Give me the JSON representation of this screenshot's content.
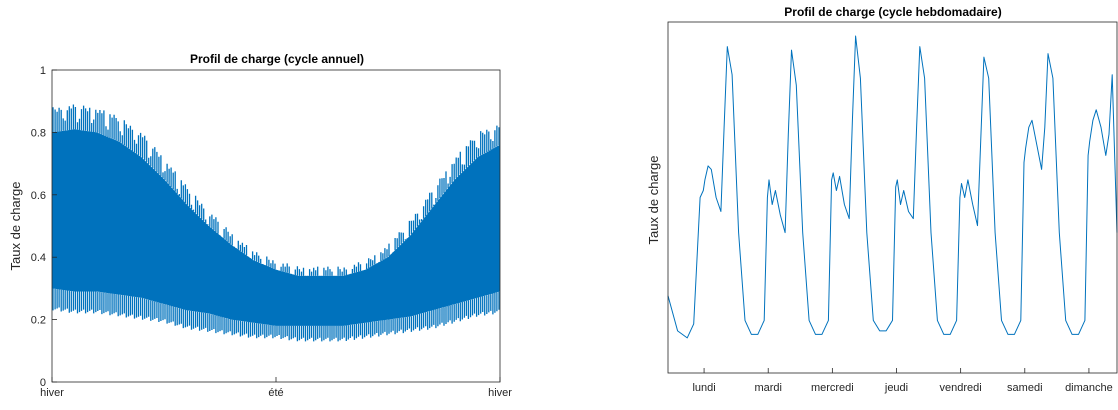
{
  "chart_data": [
    {
      "type": "area",
      "title": "Profil de charge (cycle annuel)",
      "xlabel": "",
      "ylabel": "Taux de charge",
      "x_categories": [
        "hiver",
        "été",
        "hiver"
      ],
      "yticks": [
        "0",
        "0.2",
        "0.4",
        "0.6",
        "0.8",
        "1"
      ],
      "ylim": [
        0,
        1
      ],
      "color": "#0072BD",
      "envelope": {
        "x": [
          0,
          0.05,
          0.1,
          0.15,
          0.2,
          0.25,
          0.3,
          0.35,
          0.4,
          0.45,
          0.5,
          0.55,
          0.6,
          0.65,
          0.7,
          0.75,
          0.8,
          0.85,
          0.9,
          0.95,
          1.0
        ],
        "upper": [
          0.88,
          0.89,
          0.88,
          0.85,
          0.8,
          0.72,
          0.63,
          0.55,
          0.48,
          0.42,
          0.39,
          0.37,
          0.37,
          0.37,
          0.39,
          0.44,
          0.52,
          0.62,
          0.72,
          0.8,
          0.83
        ],
        "lower": [
          0.23,
          0.22,
          0.22,
          0.21,
          0.2,
          0.19,
          0.17,
          0.16,
          0.15,
          0.14,
          0.14,
          0.13,
          0.13,
          0.13,
          0.14,
          0.15,
          0.16,
          0.17,
          0.19,
          0.21,
          0.22
        ],
        "band_top": [
          0.8,
          0.81,
          0.8,
          0.77,
          0.72,
          0.65,
          0.57,
          0.5,
          0.44,
          0.39,
          0.36,
          0.34,
          0.34,
          0.34,
          0.36,
          0.4,
          0.47,
          0.56,
          0.65,
          0.72,
          0.76
        ],
        "band_bottom": [
          0.3,
          0.29,
          0.29,
          0.28,
          0.27,
          0.25,
          0.23,
          0.22,
          0.2,
          0.19,
          0.18,
          0.18,
          0.18,
          0.18,
          0.19,
          0.2,
          0.21,
          0.23,
          0.25,
          0.27,
          0.29
        ]
      }
    },
    {
      "type": "line",
      "title": "Profil de charge (cycle hebdomadaire)",
      "xlabel": "",
      "ylabel": "Taux de charge",
      "x_categories": [
        "lundi",
        "mardi",
        "mercredi",
        "jeudi",
        "vendredi",
        "samedi",
        "dimanche"
      ],
      "color": "#0072BD",
      "x": [
        0,
        0.3,
        0.6,
        0.8,
        1.0,
        1.1,
        1.15,
        1.25,
        1.35,
        1.5,
        1.65,
        1.75,
        1.85,
        2.0,
        2.2,
        2.4,
        2.6,
        2.8,
        3.0,
        3.1,
        3.15,
        3.25,
        3.35,
        3.5,
        3.65,
        3.75,
        3.85,
        4.0,
        4.2,
        4.4,
        4.6,
        4.8,
        5.0,
        5.1,
        5.15,
        5.25,
        5.35,
        5.5,
        5.65,
        5.75,
        5.85,
        6.0,
        6.2,
        6.4,
        6.6,
        6.8,
        7.0,
        7.1,
        7.15,
        7.25,
        7.35,
        7.5,
        7.65,
        7.75,
        7.85,
        8.0,
        8.2,
        8.4,
        8.6,
        8.8,
        9.0,
        9.1,
        9.15,
        9.25,
        9.35,
        9.5,
        9.65,
        9.75,
        9.85,
        10.0,
        10.2,
        10.4,
        10.6,
        10.8,
        11.0,
        11.1,
        11.15,
        11.25,
        11.35,
        11.5,
        11.65,
        11.75,
        11.85,
        12.0,
        12.2,
        12.4,
        12.6,
        12.8,
        13.0,
        13.1,
        13.15,
        13.25,
        13.35,
        13.5,
        13.65,
        13.75,
        13.85,
        14.0
      ],
      "y": [
        0.22,
        0.12,
        0.1,
        0.14,
        0.5,
        0.52,
        0.55,
        0.59,
        0.58,
        0.5,
        0.46,
        0.7,
        0.93,
        0.85,
        0.4,
        0.15,
        0.11,
        0.11,
        0.15,
        0.5,
        0.55,
        0.48,
        0.52,
        0.45,
        0.4,
        0.68,
        0.92,
        0.82,
        0.4,
        0.15,
        0.11,
        0.11,
        0.15,
        0.55,
        0.57,
        0.52,
        0.56,
        0.48,
        0.44,
        0.72,
        0.96,
        0.84,
        0.4,
        0.15,
        0.12,
        0.12,
        0.15,
        0.53,
        0.55,
        0.48,
        0.52,
        0.46,
        0.44,
        0.7,
        0.93,
        0.84,
        0.4,
        0.15,
        0.11,
        0.11,
        0.15,
        0.5,
        0.54,
        0.5,
        0.55,
        0.48,
        0.42,
        0.66,
        0.9,
        0.84,
        0.4,
        0.15,
        0.11,
        0.11,
        0.15,
        0.6,
        0.64,
        0.7,
        0.72,
        0.65,
        0.58,
        0.7,
        0.91,
        0.84,
        0.4,
        0.15,
        0.11,
        0.11,
        0.15,
        0.62,
        0.66,
        0.72,
        0.75,
        0.7,
        0.62,
        0.68,
        0.85,
        0.4
      ]
    }
  ]
}
